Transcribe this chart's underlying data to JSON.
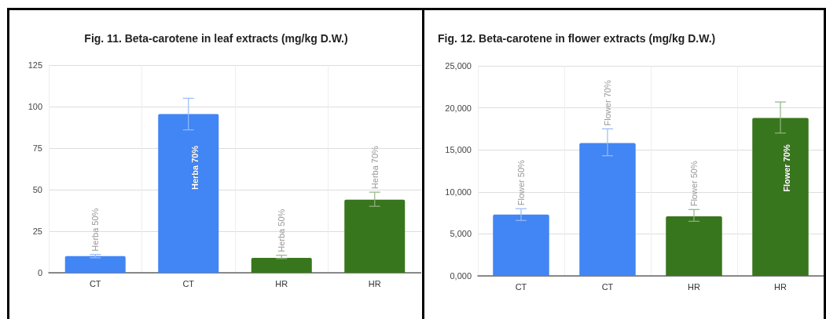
{
  "chart_data": [
    {
      "type": "bar",
      "title": "Fig. 11. Beta-carotene in leaf extracts (mg/kg D.W.)",
      "categories": [
        "CT",
        "CT",
        "HR",
        "HR"
      ],
      "values": [
        10,
        95.5,
        9,
        44
      ],
      "colors": [
        "#4285f4",
        "#4285f4",
        "#38761d",
        "#38761d"
      ],
      "errors": [
        [
          9,
          11
        ],
        [
          86,
          105
        ],
        [
          8.5,
          10.5
        ],
        [
          40,
          48.5
        ]
      ],
      "value_labels": [
        "Herba 50%",
        "Herba 70%",
        "Herba 50%",
        "Herba 70%"
      ],
      "ylim": [
        0,
        125
      ],
      "yticks": [
        0,
        25,
        50,
        75,
        100,
        125
      ],
      "grid": true
    },
    {
      "type": "bar",
      "title": "Fig. 12. Beta-carotene in flower extracts (mg/kg D.W.)",
      "categories": [
        "CT",
        "CT",
        "HR",
        "HR"
      ],
      "values": [
        7300,
        15800,
        7100,
        18800
      ],
      "colors": [
        "#4285f4",
        "#4285f4",
        "#38761d",
        "#38761d"
      ],
      "errors": [
        [
          6600,
          8000
        ],
        [
          14300,
          17500
        ],
        [
          6500,
          7900
        ],
        [
          17000,
          20700
        ]
      ],
      "value_labels": [
        "Flower 50%",
        "Flower 70%",
        "Flower 50%",
        "Flower 70%"
      ],
      "ylim": [
        0,
        25000
      ],
      "yticks": [
        {
          "value": 0,
          "label": "0,000"
        },
        {
          "value": 5000,
          "label": "5,000"
        },
        {
          "value": 10000,
          "label": "10,000"
        },
        {
          "value": 15000,
          "label": "15,000"
        },
        {
          "value": 20000,
          "label": "20,000"
        },
        {
          "value": 25000,
          "label": "25,000"
        }
      ],
      "grid": true
    }
  ]
}
